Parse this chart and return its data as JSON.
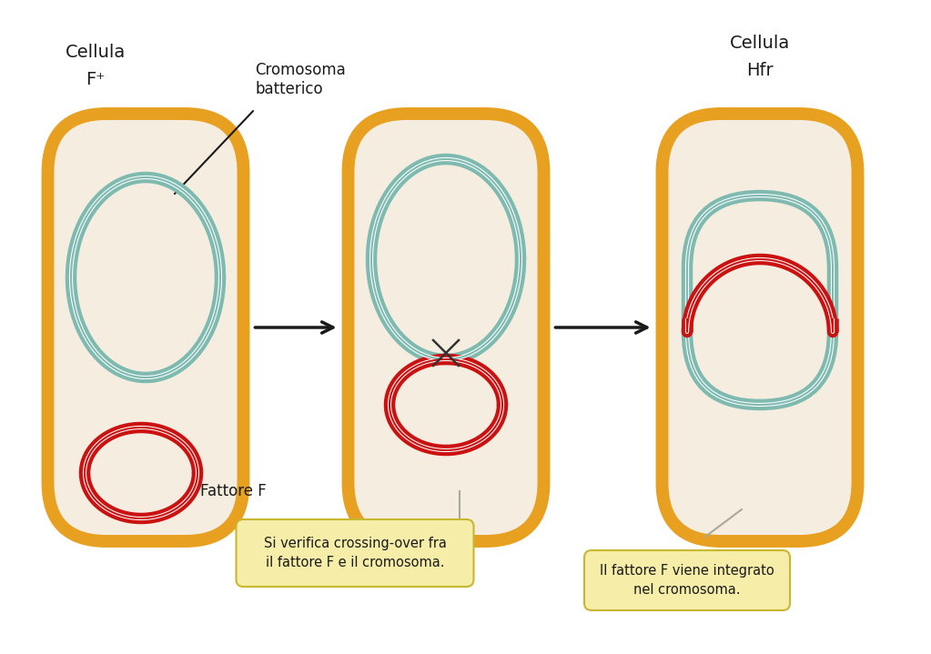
{
  "bg_color": "#ffffff",
  "cell_fill": "#f5ede0",
  "cell_border": "#e8a020",
  "cell_border_lw": 10,
  "chrom_color": "#7fbab0",
  "chrom_lw": 9,
  "chrom_white_lw": 3,
  "plasmid_color": "#cc1111",
  "plasmid_lw": 9,
  "plasmid_white_lw": 3,
  "arrow_color": "#1a1a1a",
  "leader_color": "#aaa898",
  "box_fill": "#f5eda8",
  "box_edge": "#c8b830",
  "text_color": "#1a1a1a",
  "title1_line1": "Cellula",
  "title1_line2": "F⁺",
  "title3_line1": "Cellula",
  "title3_line2": "Hfr",
  "label_chrom": "Cromosoma\nbatterico",
  "label_plasmid": "Fattore F",
  "box1_text": "Si verifica crossing-over fra\nil fattore F e il cromosoma.",
  "box2_text": "Il fattore F viene integrato\nnel cromosoma.",
  "fig_w": 10.23,
  "fig_h": 7.19
}
